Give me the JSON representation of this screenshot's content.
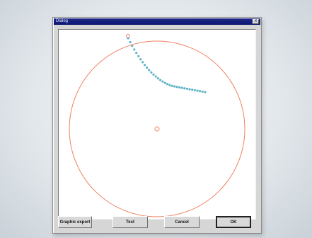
{
  "window": {
    "title": "Dialog",
    "close_glyph": "✕"
  },
  "plot": {
    "circle_color": "#f08060",
    "trace_color": "#5fb3c8",
    "center_marker": "small-circle",
    "start_marker": "small-circle"
  },
  "buttons": {
    "graphic_export": "Graphic export",
    "test": "Test",
    "cancel": "Cancel",
    "ok": "OK"
  }
}
